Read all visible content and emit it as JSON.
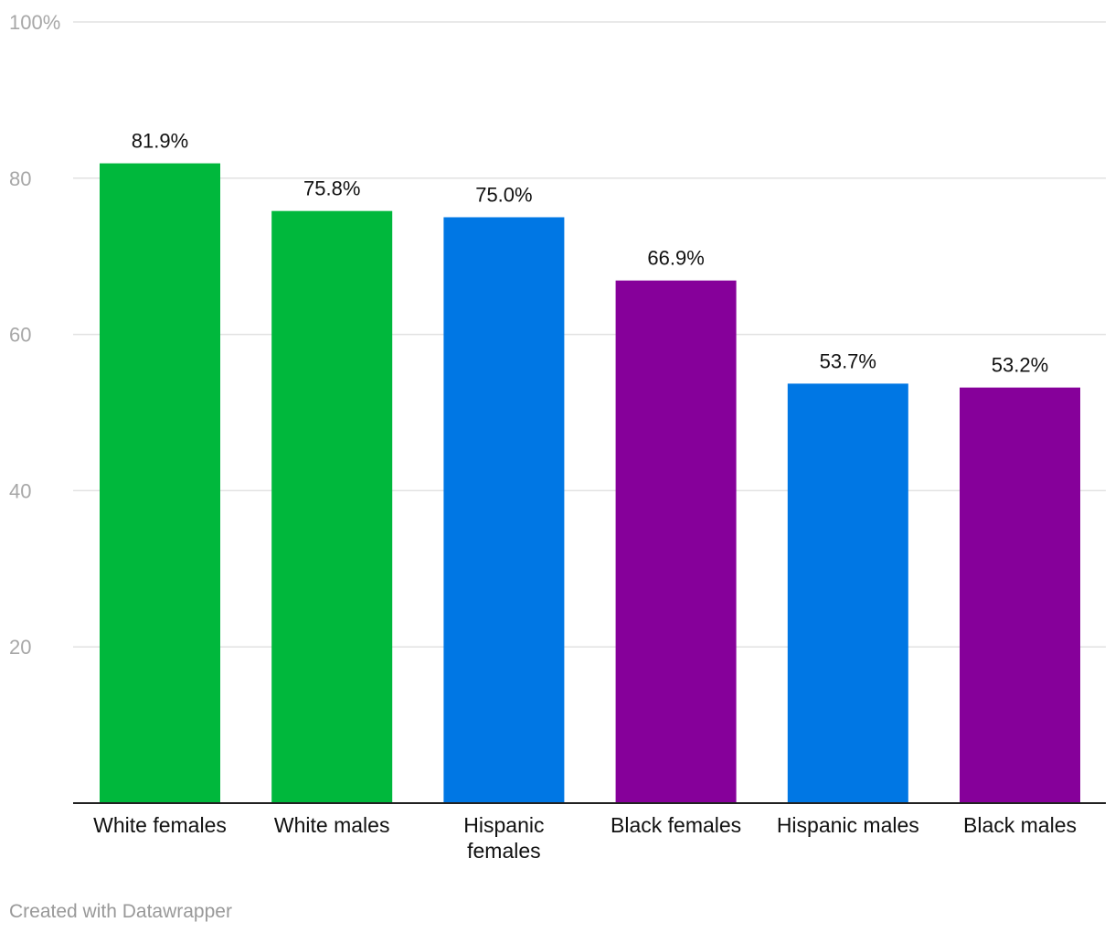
{
  "chart_data": {
    "type": "bar",
    "categories": [
      [
        "White females"
      ],
      [
        "White males"
      ],
      [
        "Hispanic",
        "females"
      ],
      [
        "Black females"
      ],
      [
        "Hispanic males"
      ],
      [
        "Black males"
      ]
    ],
    "values": [
      81.9,
      75.8,
      75.0,
      66.9,
      53.7,
      53.2
    ],
    "value_labels": [
      "81.9%",
      "75.8%",
      "75.0%",
      "66.9%",
      "53.7%",
      "53.2%"
    ],
    "colors": [
      "#00b83c",
      "#00b83c",
      "#0077e4",
      "#86009a",
      "#0077e4",
      "#86009a"
    ],
    "ylim": [
      0,
      100
    ],
    "yticks": [
      20,
      40,
      60,
      80,
      100
    ],
    "ytick_labels": [
      "20",
      "40",
      "60",
      "80",
      "100%"
    ],
    "title": "",
    "xlabel": "",
    "ylabel": "",
    "grid": true
  },
  "footer": {
    "credit": "Created with Datawrapper"
  }
}
